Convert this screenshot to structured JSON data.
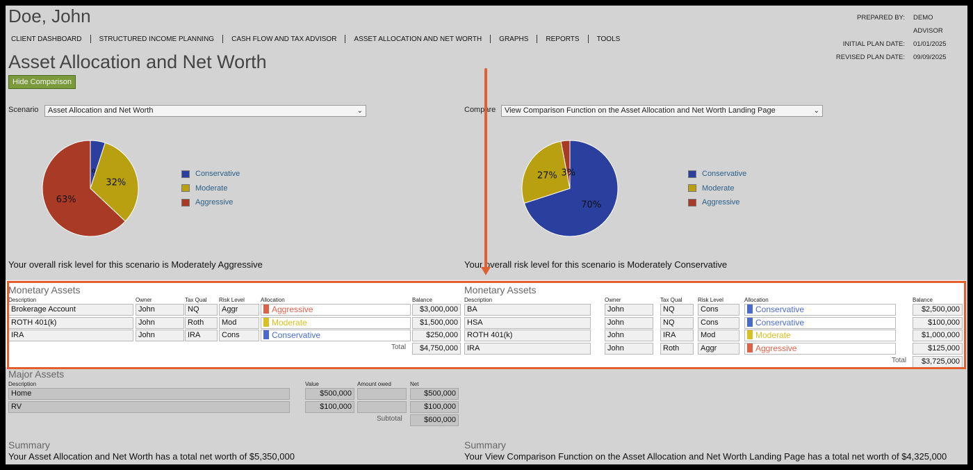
{
  "client_name": "Doe, John",
  "nav": [
    "CLIENT DASHBOARD",
    "STRUCTURED INCOME PLANNING",
    "CASH FLOW AND TAX ADVISOR",
    "ASSET ALLOCATION AND NET WORTH",
    "GRAPHS",
    "REPORTS",
    "TOOLS"
  ],
  "meta": {
    "prepared_by_label": "PREPARED BY:",
    "prepared_by": "DEMO ADVISOR",
    "initial_label": "INITIAL PLAN DATE:",
    "initial": "01/01/2025",
    "revised_label": "REVISED PLAN DATE:",
    "revised": "09/09/2025"
  },
  "page_title": "Asset Allocation and Net Worth",
  "hide_button": "Hide Comparison",
  "colors": {
    "conservative": "#2a3f9e",
    "moderate": "#b8a010",
    "aggressive": "#a83a26",
    "highlight": "#e06030"
  },
  "left": {
    "scenario_label": "Scenario",
    "scenario_value": "Asset Allocation and Net Worth",
    "pie": [
      {
        "name": "Conservative",
        "pct": 5,
        "label": "5%"
      },
      {
        "name": "Moderate",
        "pct": 32,
        "label": "32%"
      },
      {
        "name": "Aggressive",
        "pct": 63,
        "label": "63%"
      }
    ],
    "legend": [
      "Conservative",
      "Moderate",
      "Aggressive"
    ],
    "risk_text": "Your overall risk level for this scenario is Moderately Aggressive",
    "monetary_title": "Monetary Assets",
    "headers": {
      "description": "Description",
      "owner": "Owner",
      "tax_qual": "Tax Qual",
      "risk": "Risk Level",
      "allocation": "Allocation",
      "balance": "Balance"
    },
    "rows": [
      {
        "description": "Brokerage Account",
        "owner": "John",
        "tax": "NQ",
        "risk": "Aggr",
        "allocation": "Aggressive",
        "balance": "$3,000,000"
      },
      {
        "description": " ROTH 401(k)",
        "owner": "John",
        "tax": "Roth",
        "risk": "Mod",
        "allocation": "Moderate",
        "balance": "$1,500,000"
      },
      {
        "description": "IRA",
        "owner": "John",
        "tax": "IRA",
        "risk": "Cons",
        "allocation": "Conservative",
        "balance": "$250,000"
      }
    ],
    "total_label": "Total",
    "total": "$4,750,000",
    "major": {
      "title": "Major Assets",
      "headers": {
        "description": "Description",
        "value": "Value",
        "owed": "Amount owed",
        "net": "Net"
      },
      "rows": [
        {
          "description": "Home",
          "value": "$500,000",
          "owed": "",
          "net": "$500,000"
        },
        {
          "description": "RV",
          "value": "$100,000",
          "owed": "",
          "net": "$100,000"
        }
      ],
      "subtotal_label": "Subtotal",
      "subtotal": "$600,000"
    },
    "summary_title": "Summary",
    "summary_text": "Your Asset Allocation and Net Worth has a total net worth of $5,350,000"
  },
  "right": {
    "compare_label": "Compare",
    "compare_value": "View Comparison Function on the Asset Allocation and Net Worth Landing Page",
    "pie": [
      {
        "name": "Conservative",
        "pct": 70,
        "label": "70%"
      },
      {
        "name": "Moderate",
        "pct": 27,
        "label": "27%"
      },
      {
        "name": "Aggressive",
        "pct": 3,
        "label": "3%"
      }
    ],
    "legend": [
      "Conservative",
      "Moderate",
      "Aggressive"
    ],
    "risk_text": "Your overall risk level for this scenario is Moderately Conservative",
    "monetary_title": "Monetary Assets",
    "headers": {
      "description": "Description",
      "owner": "Owner",
      "tax_qual": "Tax Qual",
      "risk": "Risk Level",
      "allocation": "Allocation",
      "balance": "Balance"
    },
    "rows": [
      {
        "description": "BA",
        "owner": "John",
        "tax": "NQ",
        "risk": "Cons",
        "allocation": "Conservative",
        "balance": "$2,500,000"
      },
      {
        "description": "HSA",
        "owner": "John",
        "tax": "NQ",
        "risk": "Cons",
        "allocation": "Conservative",
        "balance": "$100,000"
      },
      {
        "description": "ROTH 401(k)",
        "owner": "John",
        "tax": "IRA",
        "risk": "Mod",
        "allocation": "Moderate",
        "balance": "$1,000,000"
      },
      {
        "description": "IRA",
        "owner": "John",
        "tax": "Roth",
        "risk": "Aggr",
        "allocation": "Aggressive",
        "balance": "$125,000"
      }
    ],
    "total_label": "Total",
    "total": "$3,725,000",
    "summary_title": "Summary",
    "summary_text": "Your View Comparison Function on the Asset Allocation and Net Worth Landing Page has a total net worth of $4,325,000"
  }
}
